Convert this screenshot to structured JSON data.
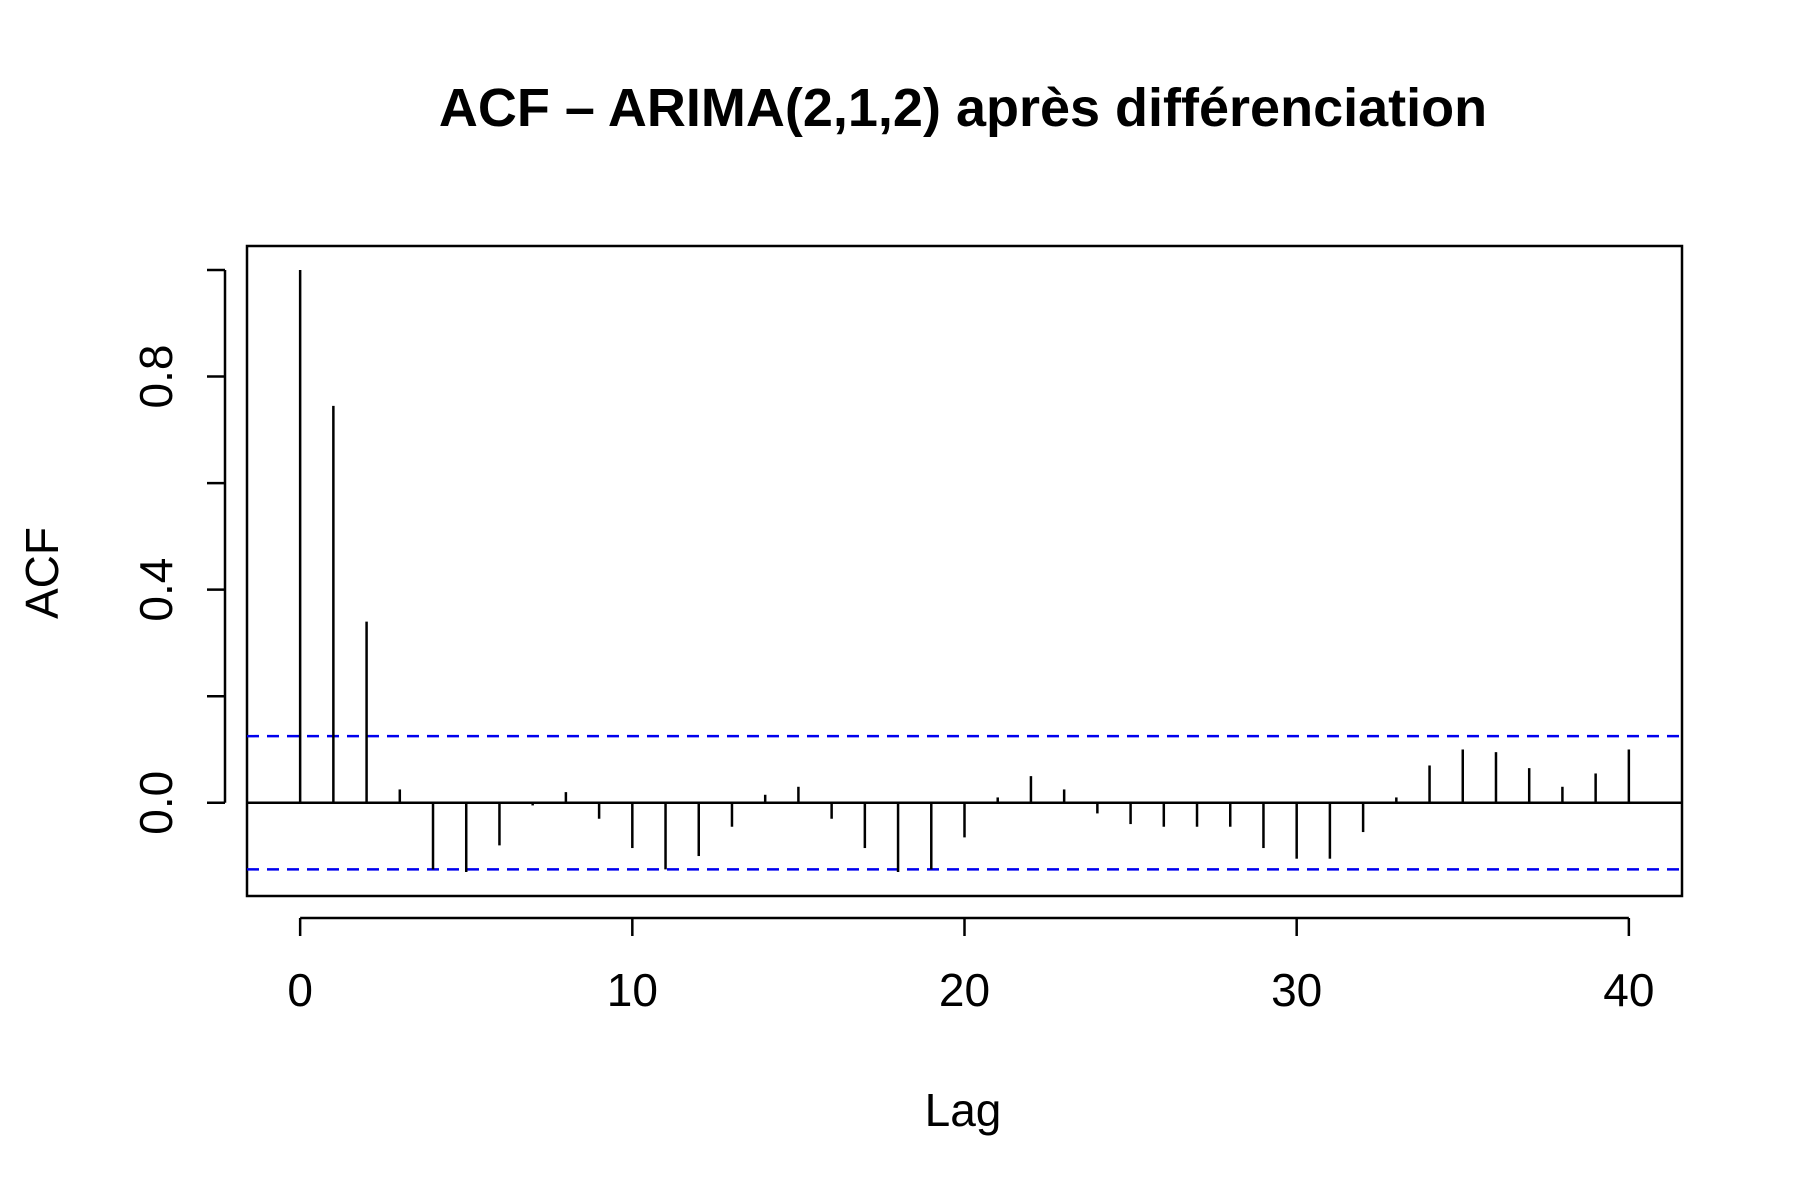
{
  "chart_data": {
    "type": "bar",
    "title": "ACF – ARIMA(2,1,2) après différenciation",
    "xlabel": "Lag",
    "ylabel": "ACF",
    "x": [
      0,
      1,
      2,
      3,
      4,
      5,
      6,
      7,
      8,
      9,
      10,
      11,
      12,
      13,
      14,
      15,
      16,
      17,
      18,
      19,
      20,
      21,
      22,
      23,
      24,
      25,
      26,
      27,
      28,
      29,
      30,
      31,
      32,
      33,
      34,
      35,
      36,
      37,
      38,
      39,
      40
    ],
    "values": [
      1.0,
      0.745,
      0.34,
      0.025,
      -0.125,
      -0.13,
      -0.08,
      -0.005,
      0.02,
      -0.03,
      -0.085,
      -0.125,
      -0.1,
      -0.045,
      0.015,
      0.03,
      -0.03,
      -0.085,
      -0.13,
      -0.125,
      -0.065,
      0.01,
      0.05,
      0.025,
      -0.02,
      -0.04,
      -0.045,
      -0.045,
      -0.045,
      -0.085,
      -0.105,
      -0.105,
      -0.055,
      0.01,
      0.07,
      0.1,
      0.095,
      0.065,
      0.03,
      0.055,
      0.1
    ],
    "xlim": [
      -1.6,
      41.6
    ],
    "ylim": [
      -0.175,
      1.045
    ],
    "x_ticks": [
      0,
      10,
      20,
      30,
      40
    ],
    "x_tick_labels": [
      "0",
      "10",
      "20",
      "30",
      "40"
    ],
    "y_ticks": [
      0,
      0.2,
      0.4,
      0.6,
      0.8,
      1.0
    ],
    "y_tick_labels": [
      "0.0",
      "",
      "0.4",
      "",
      "0.8",
      ""
    ],
    "confidence_bound": 0.125,
    "confidence_line_color": "#0000ee",
    "bar_color": "#000000",
    "grid": false,
    "legend": "none"
  }
}
